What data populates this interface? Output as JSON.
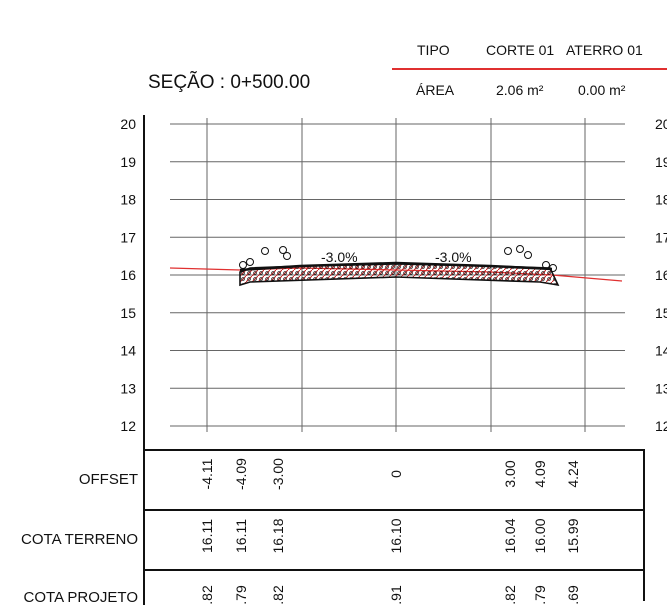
{
  "header": {
    "section_title": "SEÇÃO : 0+500.00",
    "tipo_label": "TIPO",
    "area_label": "ÁREA",
    "columns": [
      {
        "tipo": "CORTE 01",
        "area": "2.06 m²"
      },
      {
        "tipo": "ATERRO 01",
        "area": "0.00 m²"
      }
    ]
  },
  "chart_data": {
    "type": "line",
    "ylim": [
      12,
      20
    ],
    "yticks": [
      20,
      19,
      18,
      17,
      16,
      15,
      14,
      13,
      12
    ],
    "slopes": [
      {
        "text": "-3.0%",
        "offset": -1.5
      },
      {
        "text": "-3.0%",
        "offset": 1.5
      }
    ],
    "terrain_color": "#e03030",
    "road_color": "#111111"
  },
  "table": {
    "rows": [
      {
        "label": "OFFSET",
        "values": [
          "-4.11",
          "-4.09",
          "-3.00",
          "0",
          "3.00",
          "4.09",
          "4.24"
        ]
      },
      {
        "label": "COTA TERRENO",
        "values": [
          "16.11",
          "16.11",
          "16.18",
          "16.10",
          "16.04",
          "16.00",
          "15.99"
        ]
      },
      {
        "label": "COTA PROJETO",
        "values": [
          ".82",
          ".79",
          ".82",
          ".91",
          ".82",
          ".79",
          ".69"
        ]
      }
    ]
  },
  "colors": {
    "accent_line": "#e03030",
    "grid": "#555555"
  }
}
